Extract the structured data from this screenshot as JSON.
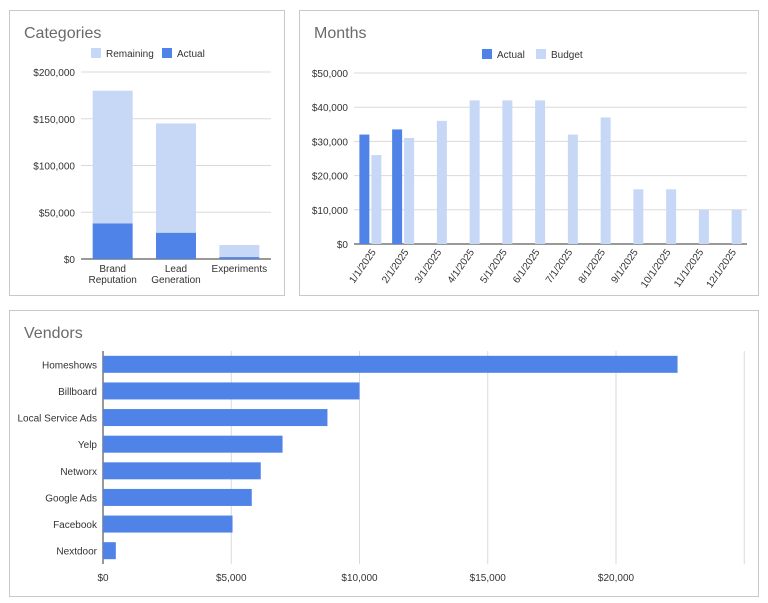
{
  "colors": {
    "actual": "#5083e8",
    "light": "#c6d8f6",
    "grid": "#dadada",
    "axis": "#333333"
  },
  "chart_data": [
    {
      "type": "bar",
      "stacked": true,
      "title": "Categories",
      "categories": [
        [
          "Brand",
          "Reputation"
        ],
        [
          "Lead",
          "Generation"
        ],
        [
          "Experiments"
        ]
      ],
      "series": [
        {
          "name": "Actual",
          "values": [
            38000,
            28000,
            2000
          ]
        },
        {
          "name": "Remaining",
          "values": [
            142000,
            117000,
            13000
          ]
        }
      ],
      "legend_order": [
        "Remaining",
        "Actual"
      ],
      "legend": "top",
      "ylim": [
        0,
        200000
      ],
      "yticks": [
        "$0",
        "$50,000",
        "$100,000",
        "$150,000",
        "$200,000"
      ],
      "grid": true
    },
    {
      "type": "bar",
      "title": "Months",
      "categories": [
        "1/1/2025",
        "2/1/2025",
        "3/1/2025",
        "4/1/2025",
        "5/1/2025",
        "6/1/2025",
        "7/1/2025",
        "8/1/2025",
        "9/1/2025",
        "10/1/2025",
        "11/1/2025",
        "12/1/2025"
      ],
      "series": [
        {
          "name": "Actual",
          "values": [
            32000,
            33500,
            0,
            0,
            0,
            0,
            0,
            0,
            0,
            0,
            0,
            0
          ]
        },
        {
          "name": "Budget",
          "values": [
            26000,
            31000,
            36000,
            42000,
            42000,
            42000,
            32000,
            37000,
            16000,
            16000,
            10000,
            10000
          ]
        }
      ],
      "legend": "top",
      "ylim": [
        0,
        50000
      ],
      "yticks": [
        "$0",
        "$10,000",
        "$20,000",
        "$30,000",
        "$40,000",
        "$50,000"
      ],
      "grid": true
    },
    {
      "type": "bar",
      "orientation": "horizontal",
      "title": "Vendors",
      "categories": [
        "Homeshows",
        "Billboard",
        "Local Service Ads",
        "Yelp",
        "Networx",
        "Google Ads",
        "Facebook",
        "Nextdoor"
      ],
      "values": [
        22400,
        10000,
        8750,
        7000,
        6150,
        5800,
        5050,
        500
      ],
      "xlim": [
        0,
        25000
      ],
      "xticks": [
        "$0",
        "$5,000",
        "$10,000",
        "$15,000",
        "$20,000"
      ],
      "grid": true
    }
  ]
}
